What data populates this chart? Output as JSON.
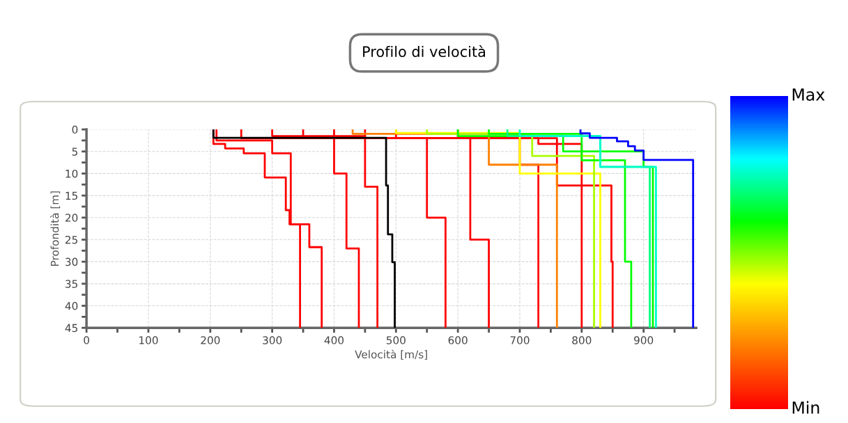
{
  "chart_data": {
    "type": "line",
    "title": "Profilo di velocità",
    "xlabel": "Velocità [m/s]",
    "ylabel": "Profondità [m]",
    "xlim": [
      0,
      985
    ],
    "ylim": [
      45,
      0
    ],
    "xticks": [
      0,
      {
        "value": 50,
        "label": null
      },
      100,
      {
        "value": 150,
        "label": null
      },
      200,
      {
        "value": 250,
        "label": null
      },
      300,
      {
        "value": 350,
        "label": null
      },
      400,
      {
        "value": 450,
        "label": null
      },
      500,
      {
        "value": 550,
        "label": null
      },
      600,
      {
        "value": 650,
        "label": null
      },
      700,
      {
        "value": 750,
        "label": null
      },
      800,
      {
        "value": 850,
        "label": null
      },
      900,
      {
        "value": 950,
        "label": null
      }
    ],
    "yticks": [
      0,
      {
        "value": 2.5,
        "label": null
      },
      5,
      {
        "value": 7.5,
        "label": null
      },
      10,
      {
        "value": 12.5,
        "label": null
      },
      15,
      {
        "value": 17.5,
        "label": null
      },
      20,
      {
        "value": 22.5,
        "label": null
      },
      25,
      {
        "value": 27.5,
        "label": null
      },
      30,
      {
        "value": 32.5,
        "label": null
      },
      35,
      {
        "value": 37.5,
        "label": null
      },
      40,
      {
        "value": 42.5,
        "label": null
      },
      45
    ],
    "clim": [
      0,
      1
    ],
    "cticks": [
      {
        "value": 0,
        "label": "Min"
      },
      {
        "value": 1,
        "label": "Max"
      }
    ],
    "grid": true,
    "legend": false,
    "marker": "none",
    "line_style": "solid",
    "series": [
      {
        "color": "#ff0000",
        "x": [
          205,
          205,
          224,
          224,
          254,
          254,
          288,
          288,
          322,
          322,
          328,
          328,
          345,
          345
        ],
        "values": [
          0,
          3.3,
          3.3,
          4.3,
          4.3,
          5.4,
          5.4,
          10.9,
          10.9,
          18.3,
          18.3,
          21.5,
          21.5,
          45
        ]
      },
      {
        "color": "#ff0000",
        "x": [
          210,
          210,
          300,
          300,
          330,
          330,
          360,
          360,
          380,
          380
        ],
        "values": [
          0,
          2.5,
          2.5,
          5.4,
          5.4,
          21.5,
          21.5,
          26.7,
          26.7,
          45
        ]
      },
      {
        "color": "#ff0000",
        "x": [
          250,
          250,
          400,
          400,
          420,
          420,
          440,
          440
        ],
        "values": [
          0,
          2,
          2,
          10,
          10,
          27,
          27,
          45
        ]
      },
      {
        "color": "#ff0000",
        "x": [
          300,
          300,
          450,
          450,
          470,
          470
        ],
        "values": [
          0,
          1.5,
          1.5,
          13,
          13,
          45
        ]
      },
      {
        "color": "#ff0000",
        "x": [
          350,
          350,
          550,
          550,
          580,
          580
        ],
        "values": [
          0,
          2,
          2,
          20,
          20,
          45
        ]
      },
      {
        "color": "#ff0000",
        "x": [
          400,
          400,
          620,
          620,
          650,
          650
        ],
        "values": [
          0,
          2,
          2,
          25,
          25,
          45
        ]
      },
      {
        "color": "#ff0000",
        "x": [
          450,
          450,
          700,
          700,
          730,
          730
        ],
        "values": [
          0,
          2,
          2,
          8,
          8,
          45
        ]
      },
      {
        "color": "#ff0000",
        "x": [
          500,
          500,
          760,
          760,
          800,
          800
        ],
        "values": [
          0,
          2,
          2,
          12.7,
          12.7,
          45
        ]
      },
      {
        "color": "#ff0000",
        "x": [
          600,
          600,
          730,
          730,
          800,
          800,
          848,
          848,
          850,
          850
        ],
        "values": [
          0,
          2,
          2,
          3.3,
          3.3,
          12.7,
          12.7,
          30,
          30,
          45
        ]
      },
      {
        "color": "#ff8000",
        "x": [
          430,
          430,
          650,
          650,
          760,
          760
        ],
        "values": [
          0,
          1,
          1,
          8,
          8,
          45
        ]
      },
      {
        "color": "#ffff00",
        "x": [
          500,
          500,
          700,
          700,
          830,
          830
        ],
        "values": [
          0,
          0.8,
          0.8,
          10,
          10,
          45
        ]
      },
      {
        "color": "#aaff00",
        "x": [
          550,
          550,
          720,
          720,
          820,
          820
        ],
        "values": [
          0,
          1,
          1,
          6,
          6,
          45
        ]
      },
      {
        "color": "#00ff00",
        "x": [
          600,
          600,
          770,
          770,
          900,
          900,
          915,
          915
        ],
        "values": [
          0,
          1.5,
          1.5,
          5,
          5,
          8.5,
          8.5,
          45
        ]
      },
      {
        "color": "#00ff00",
        "x": [
          650,
          650,
          800,
          800,
          870,
          870,
          880,
          880
        ],
        "values": [
          0,
          1,
          1,
          7,
          7,
          30,
          30,
          45
        ]
      },
      {
        "color": "#00ff80",
        "x": [
          680,
          680,
          830,
          830,
          910,
          910
        ],
        "values": [
          0,
          1.5,
          1.5,
          8.5,
          8.5,
          45
        ]
      },
      {
        "color": "#00ffcc",
        "x": [
          700,
          700,
          830,
          830,
          920,
          920
        ],
        "values": [
          0,
          1.5,
          1.5,
          8.5,
          8.5,
          45
        ]
      },
      {
        "color": "#0000ff",
        "x": [
          798,
          798,
          813,
          813,
          857,
          857,
          875,
          875,
          886,
          886,
          900,
          900,
          980,
          980
        ],
        "values": [
          0,
          0.9,
          0.9,
          1.9,
          1.9,
          2.7,
          2.7,
          3.8,
          3.8,
          4.8,
          4.8,
          6.9,
          6.9,
          45
        ]
      },
      {
        "color": "#000000",
        "x": [
          205,
          205,
          484,
          484,
          487,
          487,
          494,
          494,
          498,
          498
        ],
        "values": [
          0,
          1.9,
          1.9,
          12.7,
          12.7,
          23.8,
          23.8,
          30.1,
          30.1,
          45
        ]
      }
    ]
  }
}
